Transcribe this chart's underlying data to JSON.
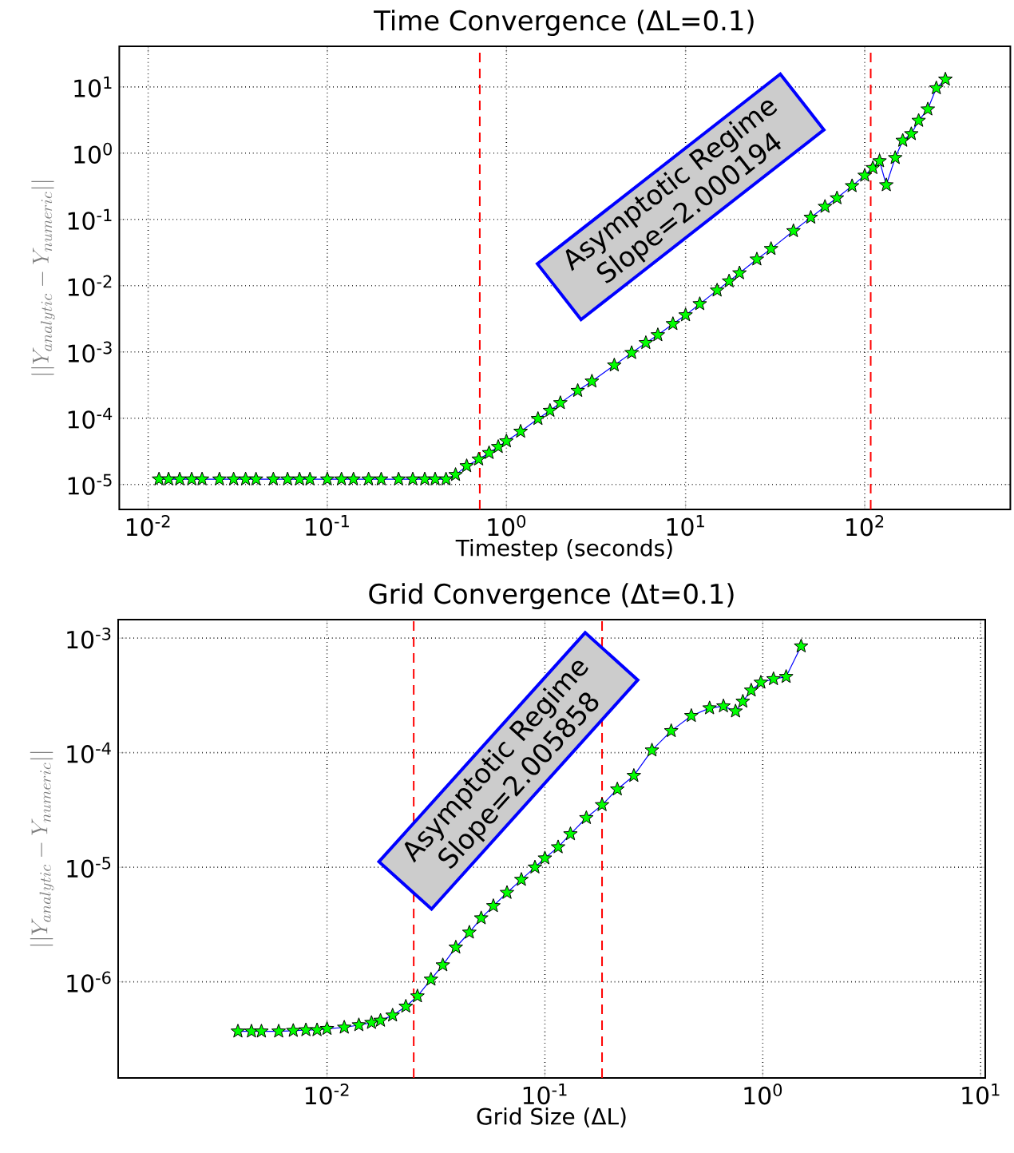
{
  "chart_data": [
    {
      "type": "line",
      "title": "Time Convergence (ΔL=0.1)",
      "xlabel": "Timestep (seconds)",
      "ylabel": "||Y_{analytic}-Y_{numeric}||",
      "x": [
        0.0115,
        0.013,
        0.015,
        0.0175,
        0.02,
        0.025,
        0.03,
        0.035,
        0.04,
        0.05,
        0.06,
        0.07,
        0.08,
        0.1,
        0.12,
        0.14,
        0.17,
        0.2,
        0.25,
        0.3,
        0.35,
        0.4,
        0.46,
        0.52,
        0.6,
        0.7,
        0.8,
        0.9,
        1,
        1.2,
        1.5,
        1.75,
        2,
        2.5,
        3,
        4,
        5,
        6,
        7,
        8.5,
        10,
        12,
        15,
        17.5,
        20,
        25,
        30,
        40,
        50,
        60,
        70,
        85,
        100,
        111,
        121,
        132,
        148,
        163,
        182,
        200,
        225,
        251,
        282
      ],
      "series": [
        {
          "color": "#00ff00",
          "values": [
            1.2e-05,
            1.2e-05,
            1.2e-05,
            1.2e-05,
            1.2e-05,
            1.2e-05,
            1.2e-05,
            1.2e-05,
            1.2e-05,
            1.2e-05,
            1.2e-05,
            1.2e-05,
            1.2e-05,
            1.2e-05,
            1.2e-05,
            1.2e-05,
            1.2e-05,
            1.2e-05,
            1.2e-05,
            1.2e-05,
            1.2e-05,
            1.2e-05,
            1.2e-05,
            1.4e-05,
            1.9e-05,
            2.4e-05,
            3e-05,
            3.7e-05,
            4.5e-05,
            6.3e-05,
            9.8e-05,
            0.00013,
            0.00017,
            0.00026,
            0.00036,
            0.00063,
            0.00097,
            0.00137,
            0.0018,
            0.00265,
            0.0036,
            0.0053,
            0.0085,
            0.0117,
            0.0155,
            0.025,
            0.036,
            0.067,
            0.107,
            0.156,
            0.21,
            0.32,
            0.46,
            0.6,
            0.76,
            0.33,
            0.85,
            1.55,
            1.95,
            3.1,
            4.6,
            9.6,
            13
          ]
        }
      ],
      "log": "xy",
      "grid": true,
      "marker": "star",
      "line_style": "solid",
      "xlim": [
        0.0069,
        650
      ],
      "ylim": [
        4.2e-06,
        41
      ],
      "xticks": [
        {
          "value": 0.01,
          "label": "10$^{-2}$"
        },
        {
          "value": 0.1,
          "label": "10$^{-1}$"
        },
        {
          "value": 1,
          "label": "10$^{0}$"
        },
        {
          "value": 10,
          "label": "10$^{1}$"
        },
        {
          "value": 100,
          "label": "10$^{2}$"
        }
      ],
      "yticks": [
        {
          "value": 1e-05,
          "label": "10$^{-5}$"
        },
        {
          "value": 0.0001,
          "label": "10$^{-4}$"
        },
        {
          "value": 0.001,
          "label": "10$^{-3}$"
        },
        {
          "value": 0.01,
          "label": "10$^{-2}$"
        },
        {
          "value": 0.1,
          "label": "10$^{-1}$"
        },
        {
          "value": 1,
          "label": "10$^{0}$"
        },
        {
          "value": 10,
          "label": "10$^{1}$"
        }
      ],
      "ref_lines": [
        {
          "axis": "x",
          "value": 0.71,
          "color": "#ff0000",
          "line_style": "dashed"
        },
        {
          "axis": "x",
          "value": 108,
          "color": "#ff0000",
          "line_style": "dashed"
        }
      ],
      "annotations": [
        "Asymptotic Regime Slope=2.000194"
      ]
    },
    {
      "type": "line",
      "title": "Grid Convergence (Δt=0.1)",
      "xlabel": "Grid Size (ΔL)",
      "ylabel": "||Y_{analytic}-Y_{numeric}||",
      "x": [
        0.0039,
        0.0045,
        0.005,
        0.006,
        0.007,
        0.008,
        0.009,
        0.01,
        0.012,
        0.014,
        0.016,
        0.0176,
        0.02,
        0.023,
        0.026,
        0.03,
        0.034,
        0.039,
        0.045,
        0.051,
        0.058,
        0.067,
        0.078,
        0.09,
        0.1,
        0.115,
        0.131,
        0.155,
        0.183,
        0.215,
        0.256,
        0.31,
        0.38,
        0.47,
        0.57,
        0.66,
        0.75,
        0.81,
        0.885,
        0.98,
        1.12,
        1.28,
        1.5
      ],
      "series": [
        {
          "color": "#00ff00",
          "values": [
            3.7e-07,
            3.7e-07,
            3.7e-07,
            3.7e-07,
            3.75e-07,
            3.8e-07,
            3.8e-07,
            3.9e-07,
            4e-07,
            4.2e-07,
            4.4e-07,
            4.6e-07,
            5.1e-07,
            6.1e-07,
            7.5e-07,
            1.05e-06,
            1.4e-06,
            2e-06,
            2.7e-06,
            3.6e-06,
            4.6e-06,
            6e-06,
            7.8e-06,
            1e-05,
            1.2e-05,
            1.5e-05,
            1.95e-05,
            2.7e-05,
            3.5e-05,
            4.8e-05,
            6.3e-05,
            0.000105,
            0.000155,
            0.00021,
            0.000245,
            0.000255,
            0.00023,
            0.00028,
            0.00035,
            0.00041,
            0.00044,
            0.00046,
            0.00085
          ]
        }
      ],
      "log": "xy",
      "grid": true,
      "marker": "star",
      "line_style": "solid",
      "xlim": [
        0.0011,
        10.5
      ],
      "ylim": [
        1.45e-07,
        0.00145
      ],
      "xticks": [
        {
          "value": 0.01,
          "label": "10$^{-2}$"
        },
        {
          "value": 0.1,
          "label": "10$^{-1}$"
        },
        {
          "value": 1,
          "label": "10$^{0}$"
        },
        {
          "value": 10,
          "label": "10$^{1}$"
        }
      ],
      "yticks": [
        {
          "value": 1e-06,
          "label": "10$^{-6}$"
        },
        {
          "value": 1e-05,
          "label": "10$^{-5}$"
        },
        {
          "value": 0.0001,
          "label": "10$^{-4}$"
        },
        {
          "value": 0.001,
          "label": "10$^{-3}$"
        }
      ],
      "ref_lines": [
        {
          "axis": "x",
          "value": 0.025,
          "color": "#ff0000",
          "line_style": "dashed"
        },
        {
          "axis": "x",
          "value": 0.183,
          "color": "#ff0000",
          "line_style": "dashed"
        }
      ],
      "annotations": [
        "Asymptotic Regime Slope=2.005858"
      ]
    }
  ]
}
